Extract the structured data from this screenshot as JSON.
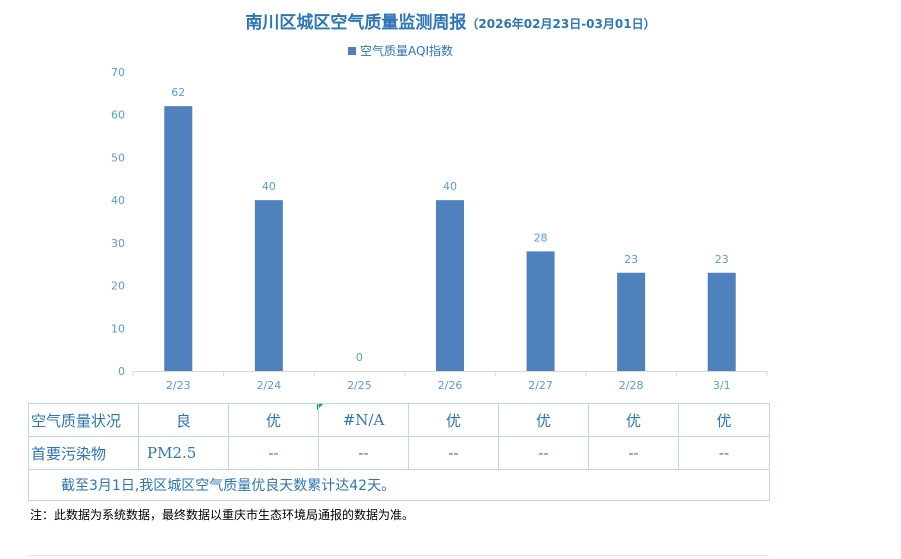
{
  "title": "南川区城区空气质量监测周报",
  "subtitle": "（2026年02月23日-03月01日）",
  "legend_label": "空气质量AQI指数",
  "colors": {
    "bar": "#4F81BD",
    "text": "#2E75B6",
    "label": "#5B9BD5"
  },
  "chart_data": {
    "type": "bar",
    "title": "南川区城区空气质量监测周报",
    "categories": [
      "2/23",
      "2/24",
      "2/25",
      "2/26",
      "2/27",
      "2/28",
      "3/1"
    ],
    "series": [
      {
        "name": "空气质量AQI指数",
        "values": [
          62,
          40,
          0,
          40,
          28,
          23,
          23
        ]
      }
    ],
    "ylim": [
      0,
      70
    ],
    "yticks": [
      "0",
      "10",
      "20",
      "30",
      "40",
      "50",
      "60",
      "70"
    ],
    "grid": false,
    "legend": "top-center"
  },
  "table": {
    "row1_header": "空气质量状况",
    "row1": [
      "良",
      "优",
      "#N/A",
      "优",
      "优",
      "优",
      "优"
    ],
    "row2_header": "首要污染物",
    "row2": [
      "PM2.5",
      "--",
      "--",
      "--",
      "--",
      "--",
      "--"
    ],
    "summary": "截至3月1日,我区城区空气质量优良天数累计达42天。"
  },
  "note": "注：此数据为系统数据，最终数据以重庆市生态环境局通报的数据为准。"
}
